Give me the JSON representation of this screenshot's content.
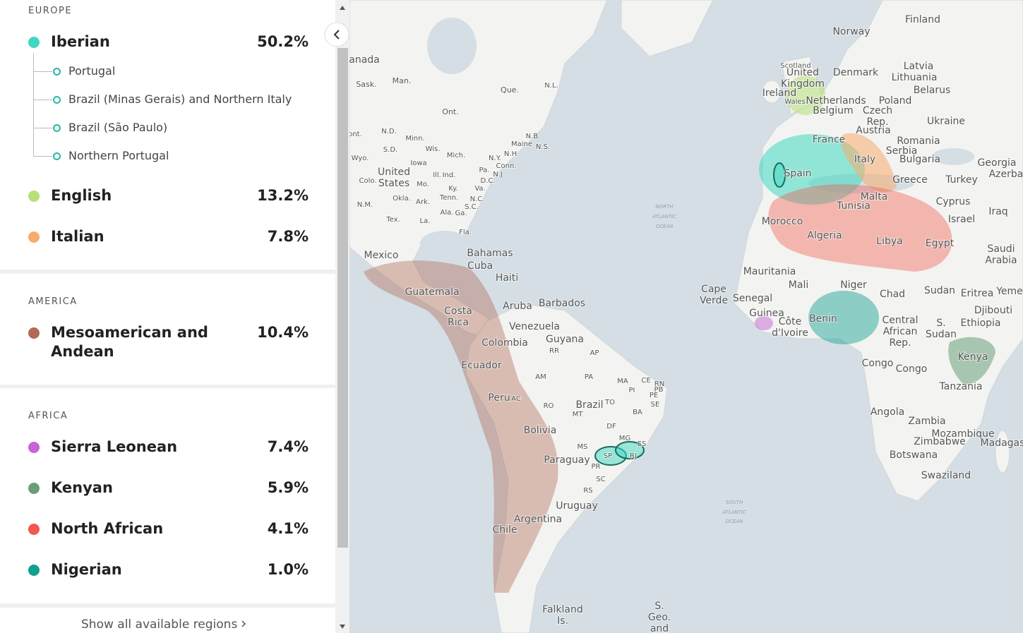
{
  "sections": [
    {
      "title": "EUROPE",
      "regions": [
        {
          "name": "Iberian",
          "percent": "50.2%",
          "color": "#3fd8c0",
          "subregions": [
            "Portugal",
            "Brazil (Minas Gerais) and Northern Italy",
            "Brazil (São Paulo)",
            "Northern Portugal"
          ]
        },
        {
          "name": "English",
          "percent": "13.2%",
          "color": "#b5e07a"
        },
        {
          "name": "Italian",
          "percent": "7.8%",
          "color": "#f7ac6c"
        }
      ]
    },
    {
      "title": "AMERICA",
      "regions": [
        {
          "name": "Mesoamerican and Andean",
          "percent": "10.4%",
          "color": "#b06a55"
        }
      ]
    },
    {
      "title": "AFRICA",
      "regions": [
        {
          "name": "Sierra Leonean",
          "percent": "7.4%",
          "color": "#c764d8"
        },
        {
          "name": "Kenyan",
          "percent": "5.9%",
          "color": "#6a9e78"
        },
        {
          "name": "North African",
          "percent": "4.1%",
          "color": "#f0594e"
        },
        {
          "name": "Nigerian",
          "percent": "1.0%",
          "color": "#10a090"
        }
      ]
    }
  ],
  "show_all": "Show all available regions",
  "map_labels": [
    "Finland",
    "Norway",
    "Latvia",
    "Lithuania",
    "Belarus",
    "Denmark",
    "Scotland",
    "United",
    "Kingdom",
    "Ireland",
    "Wales",
    "Netherlands",
    "Belgium",
    "Poland",
    "Czech",
    "Rep.",
    "Austria",
    "Ukraine",
    "France",
    "Romania",
    "Serbia",
    "Bulgaria",
    "Italy",
    "Spain",
    "Greece",
    "Turkey",
    "Georgia",
    "Azerba",
    "Tunisia",
    "Malta",
    "Cyprus",
    "Iraq",
    "Israel",
    "Morocco",
    "Algeria",
    "Libya",
    "Egypt",
    "Saudi",
    "Arabia",
    "Mauritania",
    "Mali",
    "Niger",
    "Chad",
    "Sudan",
    "Eritrea",
    "Yeme",
    "Djibouti",
    "Ethiopia",
    "Cape",
    "Verde",
    "Senegal",
    "Guinea",
    "Côte",
    "d'Ivoire",
    "Benin",
    "Central",
    "African",
    "Rep.",
    "S.",
    "Sudan",
    "Kenya",
    "Congo",
    "Congo",
    "Tanzania",
    "Angola",
    "Zambia",
    "Mozambique",
    "Zimbabwe",
    "Madagas",
    "Botswana",
    "Swaziland",
    "anada",
    "Sask.",
    "Man.",
    "Que.",
    "N.L.",
    "Ont.",
    "ont.",
    "N.D.",
    "Minn.",
    "S.D.",
    "Wis.",
    "Mich.",
    "N.B.",
    "Maine",
    "N.S.",
    "N.H",
    "N.Y.",
    "Conn.",
    "Wyo.",
    "Iowa",
    "United",
    "States",
    "Ill.",
    "Ind.",
    "Pa.",
    "N.J",
    "D.C.",
    "Colo.",
    "Mo.",
    "Ky.",
    "Va.",
    "Okla.",
    "Ark.",
    "Tenn.",
    "N.C.",
    "N.M.",
    "S.C.",
    "Ala.",
    "Ga.",
    "Tex.",
    "La.",
    "Fla.",
    "Mexico",
    "Bahamas",
    "Cuba",
    "Haiti",
    "Guatemala",
    "Aruba",
    "Barbados",
    "Costa",
    "Rica",
    "Venezuela",
    "Guyana",
    "Colombia",
    "RR",
    "AP",
    "Ecuador",
    "AM",
    "PA",
    "MA",
    "CE",
    "RN",
    "PB",
    "PI",
    "PE",
    "Peru",
    "AC",
    "Brazil",
    "TO",
    "SE",
    "RO",
    "MT",
    "BA",
    "DF",
    "Bolivia",
    "MG",
    "ES",
    "MS",
    "SP",
    "RJ",
    "Paraguay",
    "PR",
    "SC",
    "RS",
    "Uruguay",
    "Argentina",
    "Chile",
    "Falkland",
    "Is.",
    "S.",
    "Geo.",
    "and",
    "NORTH",
    "ATLANTIC",
    "OCEAN",
    "SOUTH",
    "ATLANTIC",
    "OCEAN"
  ]
}
